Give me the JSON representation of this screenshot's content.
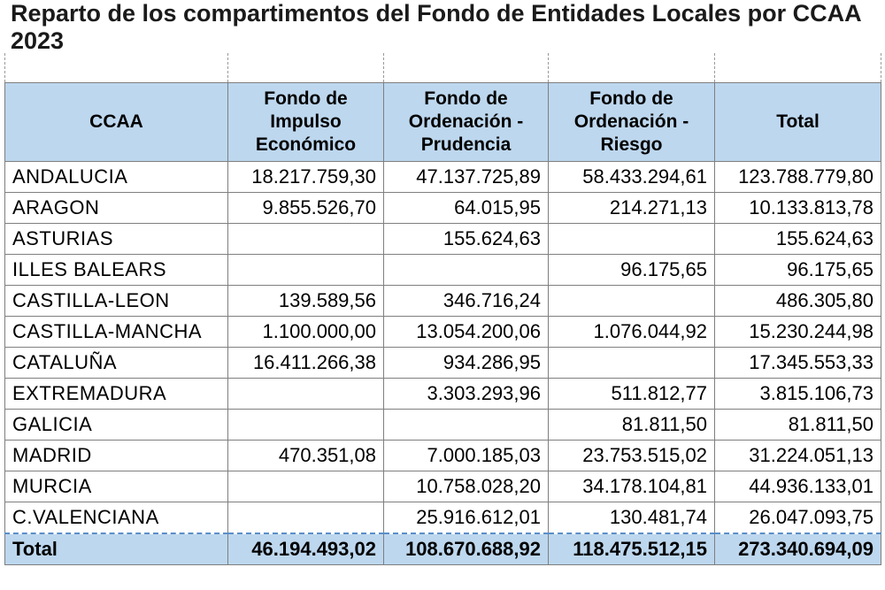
{
  "title": "Reparto de los compartimentos del Fondo de Entidades Locales por CCAA 2023",
  "headers": [
    "CCAA",
    "Fondo de Impulso Económico",
    "Fondo de Ordenación - Prudencia",
    "Fondo de Ordenación - Riesgo",
    "Total"
  ],
  "rows": [
    {
      "ccaa": "ANDALUCIA",
      "impulso": "18.217.759,30",
      "prudencia": "47.137.725,89",
      "riesgo": "58.433.294,61",
      "total": "123.788.779,80"
    },
    {
      "ccaa": "ARAGON",
      "impulso": "9.855.526,70",
      "prudencia": "64.015,95",
      "riesgo": "214.271,13",
      "total": "10.133.813,78"
    },
    {
      "ccaa": "ASTURIAS",
      "impulso": "",
      "prudencia": "155.624,63",
      "riesgo": "",
      "total": "155.624,63"
    },
    {
      "ccaa": "ILLES BALEARS",
      "impulso": "",
      "prudencia": "",
      "riesgo": "96.175,65",
      "total": "96.175,65"
    },
    {
      "ccaa": "CASTILLA-LEON",
      "impulso": "139.589,56",
      "prudencia": "346.716,24",
      "riesgo": "",
      "total": "486.305,80"
    },
    {
      "ccaa": "CASTILLA-MANCHA",
      "impulso": "1.100.000,00",
      "prudencia": "13.054.200,06",
      "riesgo": "1.076.044,92",
      "total": "15.230.244,98"
    },
    {
      "ccaa": "CATALUÑA",
      "impulso": "16.411.266,38",
      "prudencia": "934.286,95",
      "riesgo": "",
      "total": "17.345.553,33"
    },
    {
      "ccaa": "EXTREMADURA",
      "impulso": "",
      "prudencia": "3.303.293,96",
      "riesgo": "511.812,77",
      "total": "3.815.106,73"
    },
    {
      "ccaa": "GALICIA",
      "impulso": "",
      "prudencia": "",
      "riesgo": "81.811,50",
      "total": "81.811,50"
    },
    {
      "ccaa": "MADRID",
      "impulso": "470.351,08",
      "prudencia": "7.000.185,03",
      "riesgo": "23.753.515,02",
      "total": "31.224.051,13"
    },
    {
      "ccaa": "MURCIA",
      "impulso": "",
      "prudencia": "10.758.028,20",
      "riesgo": "34.178.104,81",
      "total": "44.936.133,01"
    },
    {
      "ccaa": "C.VALENCIANA",
      "impulso": "",
      "prudencia": "25.916.612,01",
      "riesgo": "130.481,74",
      "total": "26.047.093,75"
    }
  ],
  "totals": {
    "label": "Total",
    "impulso": "46.194.493,02",
    "prudencia": "108.670.688,92",
    "riesgo": "118.475.512,15",
    "total": "273.340.694,09"
  },
  "colors": {
    "header_bg": "#bdd7ee",
    "border": "#7f7f7f"
  }
}
